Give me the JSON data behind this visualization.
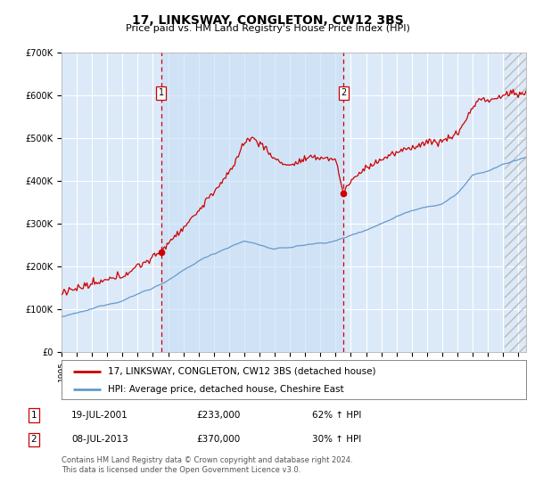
{
  "title": "17, LINKSWAY, CONGLETON, CW12 3BS",
  "subtitle": "Price paid vs. HM Land Registry's House Price Index (HPI)",
  "ylim": [
    0,
    700000
  ],
  "yticks": [
    0,
    100000,
    200000,
    300000,
    400000,
    500000,
    600000,
    700000
  ],
  "ytick_labels": [
    "£0",
    "£100K",
    "£200K",
    "£300K",
    "£400K",
    "£500K",
    "£600K",
    "£700K"
  ],
  "xlim_start": 1995.0,
  "xlim_end": 2025.5,
  "background_color": "#dce9f8",
  "highlight_color": "#cce0f0",
  "grid_color": "#ffffff",
  "sale1_date": 2001.54,
  "sale1_price": 233000,
  "sale2_date": 2013.52,
  "sale2_price": 370000,
  "hatch_start": 2024.0,
  "legend_line1": "17, LINKSWAY, CONGLETON, CW12 3BS (detached house)",
  "legend_line2": "HPI: Average price, detached house, Cheshire East",
  "note1_num": "1",
  "note1_date": "19-JUL-2001",
  "note1_price": "£233,000",
  "note1_hpi": "62% ↑ HPI",
  "note2_num": "2",
  "note2_date": "08-JUL-2013",
  "note2_price": "£370,000",
  "note2_hpi": "30% ↑ HPI",
  "footer": "Contains HM Land Registry data © Crown copyright and database right 2024.\nThis data is licensed under the Open Government Licence v3.0.",
  "line_red": "#cc0000",
  "line_blue": "#6699cc",
  "box_color": "#cc0000",
  "title_fontsize": 10,
  "subtitle_fontsize": 8,
  "tick_fontsize": 7,
  "legend_fontsize": 7.5,
  "annot_fontsize": 7.5,
  "footer_fontsize": 6
}
